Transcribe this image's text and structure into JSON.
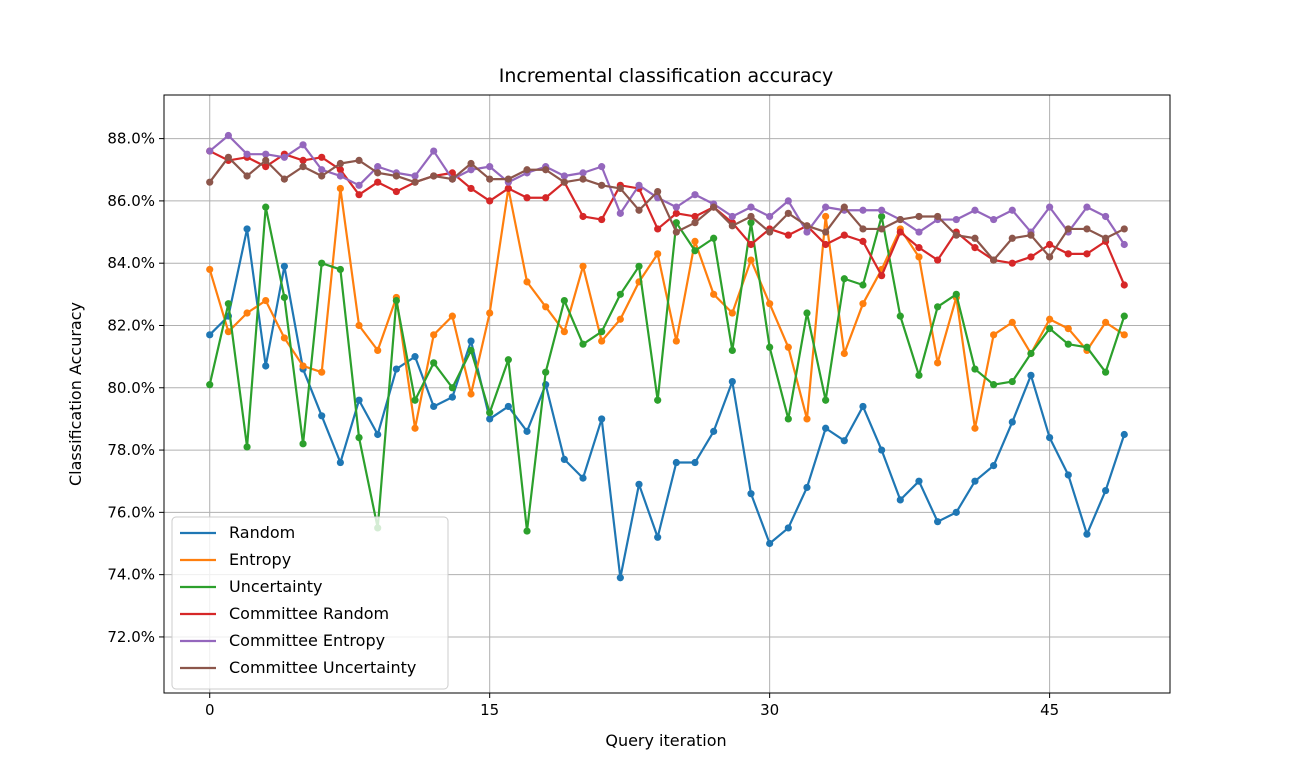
{
  "chart_data": {
    "type": "line",
    "title": "Incremental classification accuracy",
    "xlabel": "Query iteration",
    "ylabel": "Classification Accuracy",
    "xlim": [
      -2.45,
      51.45
    ],
    "ylim": [
      70.2,
      89.4
    ],
    "xticks": [
      0,
      15,
      30,
      45
    ],
    "yticks": [
      72,
      74,
      76,
      78,
      80,
      82,
      84,
      86,
      88
    ],
    "ytick_format": "percent_1dp",
    "grid": true,
    "markers": true,
    "legend_position": "lower-left",
    "x": [
      0,
      1,
      2,
      3,
      4,
      5,
      6,
      7,
      8,
      9,
      10,
      11,
      12,
      13,
      14,
      15,
      16,
      17,
      18,
      19,
      20,
      21,
      22,
      23,
      24,
      25,
      26,
      27,
      28,
      29,
      30,
      31,
      32,
      33,
      34,
      35,
      36,
      37,
      38,
      39,
      40,
      41,
      42,
      43,
      44,
      45,
      46,
      47,
      48,
      49
    ],
    "series": [
      {
        "name": "Random",
        "color": "#1f77b4",
        "values": [
          81.7,
          82.3,
          85.1,
          80.7,
          83.9,
          80.6,
          79.1,
          77.6,
          79.6,
          78.5,
          80.6,
          81.0,
          79.4,
          79.7,
          81.5,
          79.0,
          79.4,
          78.6,
          80.1,
          77.7,
          77.1,
          79.0,
          73.9,
          76.9,
          75.2,
          77.6,
          77.6,
          78.6,
          80.2,
          76.6,
          75.0,
          75.5,
          76.8,
          78.7,
          78.3,
          79.4,
          78.0,
          76.4,
          77.0,
          75.7,
          76.0,
          77.0,
          77.5,
          78.9,
          80.4,
          78.4,
          77.2,
          75.3,
          76.7,
          78.5
        ]
      },
      {
        "name": "Entropy",
        "color": "#ff7f0e",
        "values": [
          83.8,
          81.8,
          82.4,
          82.8,
          81.6,
          80.7,
          80.5,
          86.4,
          82.0,
          81.2,
          82.9,
          78.7,
          81.7,
          82.3,
          79.8,
          82.4,
          86.4,
          83.4,
          82.6,
          81.8,
          83.9,
          81.5,
          82.2,
          83.4,
          84.3,
          81.5,
          84.7,
          83.0,
          82.4,
          84.1,
          82.7,
          81.3,
          79.0,
          85.5,
          81.1,
          82.7,
          83.8,
          85.1,
          84.2,
          80.8,
          82.9,
          78.7,
          81.7,
          82.1,
          81.1,
          82.2,
          81.9,
          81.2,
          82.1,
          81.7
        ]
      },
      {
        "name": "Uncertainty",
        "color": "#2ca02c",
        "values": [
          80.1,
          82.7,
          78.1,
          85.8,
          82.9,
          78.2,
          84.0,
          83.8,
          78.4,
          75.5,
          82.8,
          79.6,
          80.8,
          80.0,
          81.2,
          79.2,
          80.9,
          75.4,
          80.5,
          82.8,
          81.4,
          81.8,
          83.0,
          83.9,
          79.6,
          85.3,
          84.4,
          84.8,
          81.2,
          85.3,
          81.3,
          79.0,
          82.4,
          79.6,
          83.5,
          83.3,
          85.5,
          82.3,
          80.4,
          82.6,
          83.0,
          80.6,
          80.1,
          80.2,
          81.1,
          81.9,
          81.4,
          81.3,
          80.5,
          82.3
        ]
      },
      {
        "name": "Committee Random",
        "color": "#d62728",
        "values": [
          87.6,
          87.3,
          87.4,
          87.1,
          87.5,
          87.3,
          87.4,
          87.0,
          86.2,
          86.6,
          86.3,
          86.6,
          86.8,
          86.9,
          86.4,
          86.0,
          86.4,
          86.1,
          86.1,
          86.6,
          85.5,
          85.4,
          86.5,
          86.4,
          85.1,
          85.6,
          85.5,
          85.8,
          85.3,
          84.6,
          85.1,
          84.9,
          85.2,
          84.6,
          84.9,
          84.7,
          83.6,
          85.0,
          84.5,
          84.1,
          85.0,
          84.5,
          84.1,
          84.0,
          84.2,
          84.6,
          84.3,
          84.3,
          84.7,
          83.3
        ]
      },
      {
        "name": "Committee Entropy",
        "color": "#9467bd",
        "values": [
          87.6,
          88.1,
          87.5,
          87.5,
          87.4,
          87.8,
          87.0,
          86.8,
          86.5,
          87.1,
          86.9,
          86.8,
          87.6,
          86.7,
          87.0,
          87.1,
          86.6,
          86.9,
          87.1,
          86.8,
          86.9,
          87.1,
          85.6,
          86.5,
          86.1,
          85.8,
          86.2,
          85.9,
          85.5,
          85.8,
          85.5,
          86.0,
          85.0,
          85.8,
          85.7,
          85.7,
          85.7,
          85.4,
          85.0,
          85.4,
          85.4,
          85.7,
          85.4,
          85.7,
          85.0,
          85.8,
          85.0,
          85.8,
          85.5,
          84.6
        ]
      },
      {
        "name": "Committee Uncertainty",
        "color": "#8c564b",
        "values": [
          86.6,
          87.4,
          86.8,
          87.3,
          86.7,
          87.1,
          86.8,
          87.2,
          87.3,
          86.9,
          86.8,
          86.6,
          86.8,
          86.7,
          87.2,
          86.7,
          86.7,
          87.0,
          87.0,
          86.6,
          86.7,
          86.5,
          86.4,
          85.7,
          86.3,
          85.0,
          85.3,
          85.8,
          85.2,
          85.5,
          85.0,
          85.6,
          85.2,
          85.0,
          85.8,
          85.1,
          85.1,
          85.4,
          85.5,
          85.5,
          84.9,
          84.8,
          84.1,
          84.8,
          84.9,
          84.2,
          85.1,
          85.1,
          84.8,
          85.1
        ]
      }
    ]
  }
}
